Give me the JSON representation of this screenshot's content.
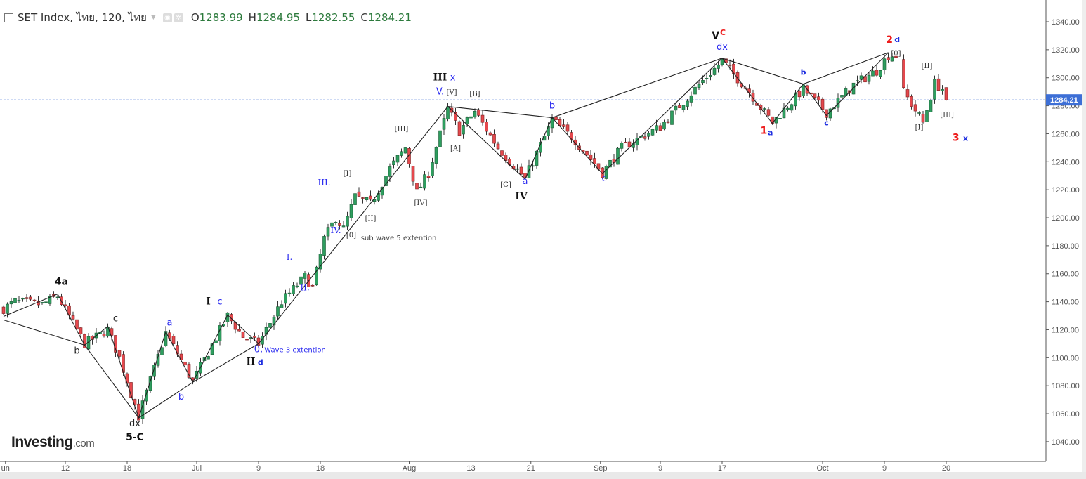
{
  "header": {
    "symbol": "SET Index, ไทย, 120, ไทย",
    "open_label": "O",
    "open": "1283.99",
    "high_label": "H",
    "high": "1284.95",
    "low_label": "L",
    "low": "1282.55",
    "close_label": "C",
    "close": "1284.21"
  },
  "logo": {
    "main": "Investing",
    "suffix": ".com"
  },
  "colors": {
    "up": "#2e9e5f",
    "down": "#e5484d",
    "price_line": "#3d6fd6",
    "wave": "#222222"
  },
  "chart_data": {
    "type": "candlestick",
    "title": "SET Index, ไทย, 120",
    "ylim": [
      1030,
      1350
    ],
    "xlim": [
      0,
      270
    ],
    "x_unit": "bar index (120-minute bars)",
    "y_ticks": [
      1040,
      1060,
      1080,
      1100,
      1120,
      1140,
      1160,
      1180,
      1200,
      1220,
      1240,
      1260,
      1280,
      1300,
      1320,
      1340
    ],
    "x_ticks": [
      {
        "i": 0.5,
        "label": "un"
      },
      {
        "i": 16,
        "label": "12"
      },
      {
        "i": 32,
        "label": "18"
      },
      {
        "i": 50,
        "label": "Jul"
      },
      {
        "i": 66,
        "label": "9"
      },
      {
        "i": 82,
        "label": "18"
      },
      {
        "i": 105,
        "label": "Aug"
      },
      {
        "i": 121,
        "label": "13"
      },
      {
        "i": 136.5,
        "label": "21"
      },
      {
        "i": 154.5,
        "label": "Sep"
      },
      {
        "i": 170,
        "label": "9"
      },
      {
        "i": 186,
        "label": "17"
      },
      {
        "i": 212,
        "label": "Oct"
      },
      {
        "i": 228,
        "label": "9"
      },
      {
        "i": 244,
        "label": "20"
      }
    ],
    "last_price": "1284.21",
    "price_path": [
      [
        0,
        1135
      ],
      [
        3,
        1140
      ],
      [
        10,
        1138
      ],
      [
        14,
        1144
      ],
      [
        21,
        1110
      ],
      [
        27,
        1120
      ],
      [
        30,
        1100
      ],
      [
        35,
        1058
      ],
      [
        42,
        1118
      ],
      [
        49,
        1083
      ],
      [
        58,
        1130
      ],
      [
        62,
        1115
      ],
      [
        66,
        1110
      ],
      [
        72,
        1140
      ],
      [
        78,
        1158
      ],
      [
        80,
        1150
      ],
      [
        83,
        1185
      ],
      [
        86,
        1200
      ],
      [
        88,
        1192
      ],
      [
        91,
        1215
      ],
      [
        95,
        1210
      ],
      [
        100,
        1235
      ],
      [
        104,
        1250
      ],
      [
        107,
        1218
      ],
      [
        110,
        1232
      ],
      [
        115,
        1278
      ],
      [
        118,
        1262
      ],
      [
        122,
        1276
      ],
      [
        128,
        1250
      ],
      [
        135,
        1228
      ],
      [
        142,
        1270
      ],
      [
        148,
        1255
      ],
      [
        155,
        1232
      ],
      [
        160,
        1250
      ],
      [
        170,
        1265
      ],
      [
        180,
        1295
      ],
      [
        186,
        1312
      ],
      [
        193,
        1290
      ],
      [
        199,
        1268
      ],
      [
        207,
        1292
      ],
      [
        213,
        1275
      ],
      [
        220,
        1295
      ],
      [
        226,
        1305
      ],
      [
        229,
        1316
      ],
      [
        231,
        1316
      ],
      [
        233,
        1290
      ],
      [
        238,
        1268
      ],
      [
        241,
        1296
      ],
      [
        243,
        1292
      ],
      [
        244,
        1284.21
      ]
    ],
    "wave_lines": [
      [
        [
          0,
          1129.5
        ],
        [
          14,
          1145.5
        ]
      ],
      [
        [
          0,
          1127
        ],
        [
          21,
          1109
        ]
      ],
      [
        [
          14,
          1145.5
        ],
        [
          21,
          1109
        ],
        [
          27,
          1122.5
        ],
        [
          35,
          1057
        ]
      ],
      [
        [
          21,
          1109
        ],
        [
          35,
          1057
        ],
        [
          42,
          1118.5
        ],
        [
          49,
          1082.5
        ],
        [
          58,
          1130.5
        ],
        [
          66,
          1110
        ]
      ],
      [
        [
          35,
          1057
        ],
        [
          49,
          1082.5
        ],
        [
          66,
          1110
        ],
        [
          115,
          1279.5
        ]
      ],
      [
        [
          115,
          1279.5
        ],
        [
          135,
          1227.5
        ],
        [
          142,
          1271.5
        ],
        [
          155,
          1231.5
        ],
        [
          186,
          1314
        ]
      ],
      [
        [
          115,
          1279.5
        ],
        [
          142,
          1271.5
        ],
        [
          186,
          1314
        ]
      ],
      [
        [
          186,
          1314
        ],
        [
          199,
          1267.5
        ],
        [
          207,
          1295.5
        ],
        [
          213,
          1273
        ],
        [
          229,
          1318
        ]
      ],
      [
        [
          186,
          1314
        ],
        [
          207,
          1295.5
        ],
        [
          229,
          1318
        ]
      ]
    ],
    "annotations": [
      {
        "text": "4a",
        "i": 15,
        "p": 1154,
        "style": "bold"
      },
      {
        "text": "b",
        "i": 19,
        "p": 1105,
        "style": "black"
      },
      {
        "text": "c",
        "i": 29,
        "p": 1128,
        "style": "black"
      },
      {
        "text": "dx",
        "i": 34,
        "p": 1053,
        "style": "black"
      },
      {
        "text": "5-C",
        "i": 34,
        "p": 1043,
        "style": "bold"
      },
      {
        "text": "a",
        "i": 43,
        "p": 1125,
        "style": "blue"
      },
      {
        "text": "b",
        "i": 46,
        "p": 1072,
        "style": "blue"
      },
      {
        "text": "I",
        "i": 53,
        "p": 1140,
        "style": "roman"
      },
      {
        "text": "c",
        "i": 56,
        "p": 1140,
        "style": "blue"
      },
      {
        "text": "II",
        "i": 64,
        "p": 1097,
        "style": "roman"
      },
      {
        "text": "d",
        "i": 66.5,
        "p": 1097,
        "style": "bluebold"
      },
      {
        "text": "0.",
        "i": 66,
        "p": 1106,
        "style": "blue"
      },
      {
        "text": "Wave 3 extention",
        "i": 67.5,
        "p": 1106,
        "style": "bluesmall"
      },
      {
        "text": "I.",
        "i": 74,
        "p": 1172,
        "style": "blueserif"
      },
      {
        "text": "II.",
        "i": 78,
        "p": 1150,
        "style": "blueserif"
      },
      {
        "text": "III.",
        "i": 83,
        "p": 1225,
        "style": "blueserif"
      },
      {
        "text": "IV.",
        "i": 86,
        "p": 1191,
        "style": "blueserif"
      },
      {
        "text": "[0]",
        "i": 90,
        "p": 1188,
        "style": "gray"
      },
      {
        "text": "sub wave 5 extention",
        "i": 92.5,
        "p": 1186,
        "style": "graysmall"
      },
      {
        "text": "[I]",
        "i": 89,
        "p": 1232,
        "style": "gray"
      },
      {
        "text": "[II]",
        "i": 95,
        "p": 1200,
        "style": "gray"
      },
      {
        "text": "[III]",
        "i": 103,
        "p": 1264,
        "style": "gray"
      },
      {
        "text": "[IV]",
        "i": 108,
        "p": 1211,
        "style": "gray"
      },
      {
        "text": "III",
        "i": 113,
        "p": 1300,
        "style": "roman"
      },
      {
        "text": "x",
        "i": 116.3,
        "p": 1300,
        "style": "blue"
      },
      {
        "text": "V.",
        "i": 113,
        "p": 1290,
        "style": "blue"
      },
      {
        "text": "[V]",
        "i": 116,
        "p": 1290,
        "style": "gray"
      },
      {
        "text": "[A]",
        "i": 117,
        "p": 1250,
        "style": "gray"
      },
      {
        "text": "[B]",
        "i": 122,
        "p": 1289,
        "style": "gray"
      },
      {
        "text": "[C]",
        "i": 130,
        "p": 1224,
        "style": "gray"
      },
      {
        "text": "a",
        "i": 135,
        "p": 1226,
        "style": "blue"
      },
      {
        "text": "IV",
        "i": 134,
        "p": 1215,
        "style": "roman"
      },
      {
        "text": "b",
        "i": 142,
        "p": 1280,
        "style": "blue"
      },
      {
        "text": "c",
        "i": 155.5,
        "p": 1228,
        "style": "blue"
      },
      {
        "text": "V",
        "i": 184.3,
        "p": 1330,
        "style": "bold"
      },
      {
        "text": "C",
        "i": 186.2,
        "p": 1332.5,
        "style": "redsmall"
      },
      {
        "text": "dx",
        "i": 186,
        "p": 1322,
        "style": "blue"
      },
      {
        "text": "1",
        "i": 196.8,
        "p": 1262,
        "style": "red"
      },
      {
        "text": "a",
        "i": 198.5,
        "p": 1261,
        "style": "bluebold"
      },
      {
        "text": "b",
        "i": 207,
        "p": 1304,
        "style": "bluebold"
      },
      {
        "text": "c",
        "i": 213,
        "p": 1268,
        "style": "bluebold"
      },
      {
        "text": "2",
        "i": 229.3,
        "p": 1327,
        "style": "red"
      },
      {
        "text": "d",
        "i": 231.3,
        "p": 1327.5,
        "style": "bluebold"
      },
      {
        "text": "[0]",
        "i": 231,
        "p": 1318,
        "style": "gray"
      },
      {
        "text": "[II]",
        "i": 239,
        "p": 1309,
        "style": "gray"
      },
      {
        "text": "[III]",
        "i": 244.2,
        "p": 1274,
        "style": "gray"
      },
      {
        "text": "[I]",
        "i": 237,
        "p": 1265,
        "style": "gray"
      },
      {
        "text": "3",
        "i": 246.5,
        "p": 1257,
        "style": "red"
      },
      {
        "text": "x",
        "i": 249,
        "p": 1257,
        "style": "bluebold"
      }
    ]
  }
}
